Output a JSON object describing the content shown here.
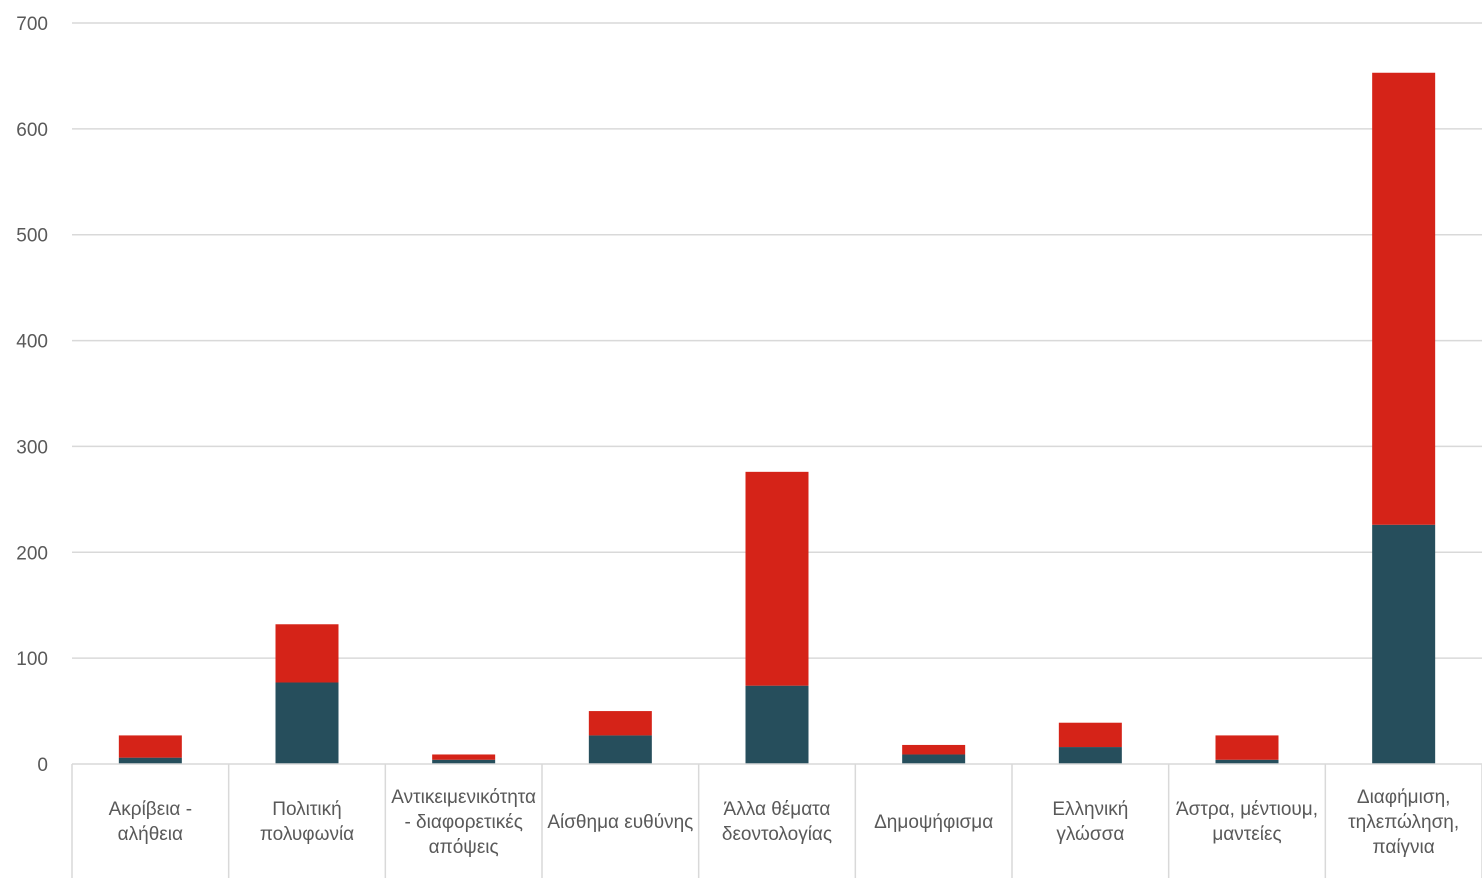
{
  "chart_data": {
    "type": "bar",
    "stacked": true,
    "ylim": [
      0,
      700
    ],
    "yticks": [
      0,
      100,
      200,
      300,
      400,
      500,
      600,
      700
    ],
    "grid": true,
    "categories": [
      "Ακρίβεια - αλήθεια",
      "Πολιτική πολυφωνία",
      "Αντικειμενικότητα - διαφορετικές απόψεις",
      "Αίσθημα ευθύνης",
      "Άλλα θέματα δεοντολογίας",
      "Δημοψήφισμα",
      "Ελληνική γλώσσα",
      "Άστρα, μέντιουμ, μαντείες",
      "Διαφήμιση, τηλεπώληση, παίγνια"
    ],
    "series": [
      {
        "color": "#264e5c",
        "values": [
          6,
          77,
          4,
          27,
          74,
          9,
          16,
          4,
          226
        ]
      },
      {
        "color": "#d52318",
        "values": [
          21,
          55,
          5,
          23,
          202,
          9,
          23,
          23,
          427
        ]
      }
    ]
  }
}
